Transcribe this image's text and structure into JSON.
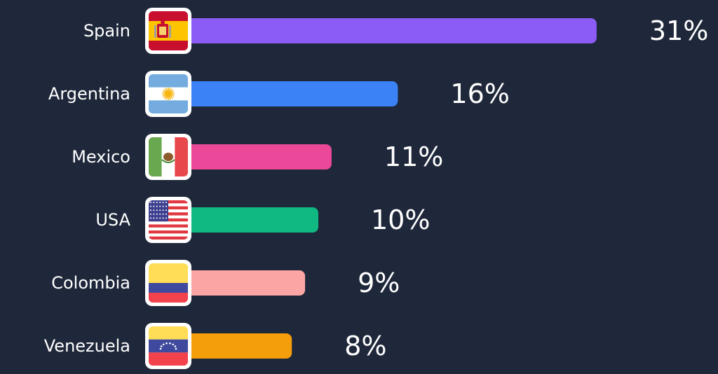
{
  "chart_data": {
    "type": "bar",
    "orientation": "horizontal",
    "categories": [
      "Spain",
      "Argentina",
      "Mexico",
      "USA",
      "Colombia",
      "Venezuela"
    ],
    "values": [
      31,
      16,
      11,
      10,
      9,
      8
    ],
    "value_labels": [
      "31%",
      "16%",
      "11%",
      "10%",
      "9%",
      "8%"
    ],
    "bar_colors": [
      "#8b5cf6",
      "#3b82f6",
      "#ec4899",
      "#10b981",
      "#fca5a5",
      "#f59e0b"
    ],
    "flag_icons": [
      "spain-flag-icon",
      "argentina-flag-icon",
      "mexico-flag-icon",
      "usa-flag-icon",
      "colombia-flag-icon",
      "venezuela-flag-icon"
    ],
    "unit": "%",
    "title": "",
    "xlabel": "",
    "ylabel": "",
    "grid": false,
    "legend": "none"
  },
  "colors": {
    "background": "#1f283a",
    "text": "#ffffff"
  }
}
